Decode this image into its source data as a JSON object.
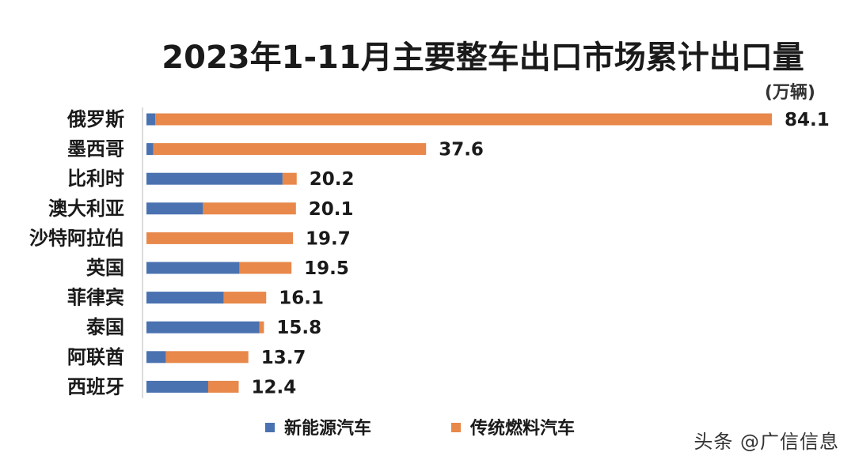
{
  "chart_data": {
    "type": "bar",
    "orientation": "horizontal",
    "stacked": true,
    "title": "2023年1-11月主要整车出口市场累计出口量",
    "unit": "(万辆)",
    "categories": [
      "俄罗斯",
      "墨西哥",
      "比利时",
      "澳大利亚",
      "沙特阿拉伯",
      "英国",
      "菲律宾",
      "泰国",
      "阿联酋",
      "西班牙"
    ],
    "totals": [
      "84.1",
      "37.6",
      "20.2",
      "20.1",
      "19.7",
      "19.5",
      "16.1",
      "15.8",
      "13.7",
      "12.4"
    ],
    "series": [
      {
        "name": "新能源汽车",
        "color": "#4a72b0",
        "values": [
          1.2,
          0.9,
          18.3,
          7.6,
          0,
          12.5,
          10.4,
          15.2,
          2.6,
          8.3
        ]
      },
      {
        "name": "传统燃料汽车",
        "color": "#e8884a",
        "values": [
          82.9,
          36.7,
          1.9,
          12.5,
          19.7,
          7.0,
          5.7,
          0.6,
          11.1,
          4.1
        ]
      }
    ],
    "xlim": [
      0,
      84.1
    ],
    "grid": false,
    "legend_position": "bottom"
  },
  "watermark": "头条 @广信信息"
}
